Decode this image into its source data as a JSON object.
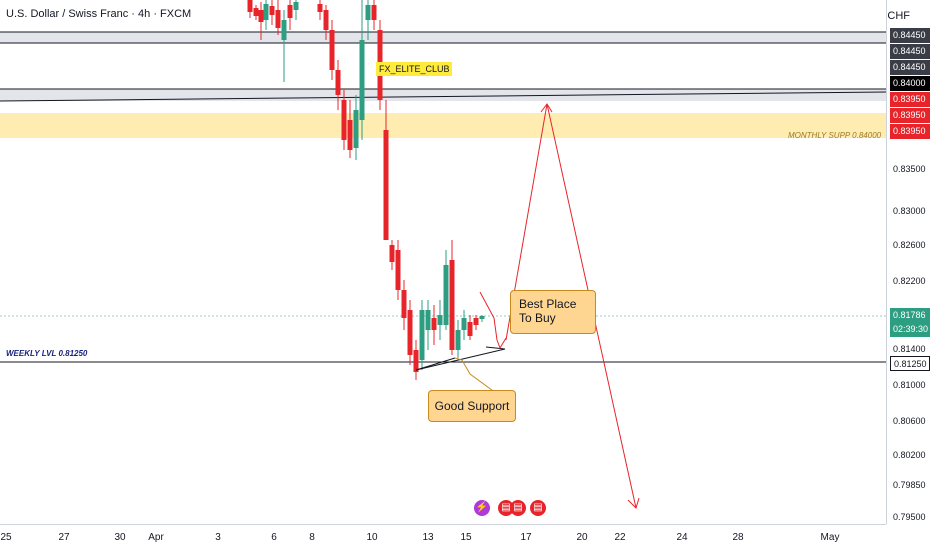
{
  "header": {
    "title": "U.S. Dollar / Swiss Franc · 4h · FXCM",
    "currency": "CHF"
  },
  "colors": {
    "up": "#2e9e83",
    "down": "#e8242b",
    "zone": "#ffd54f",
    "grey_zone": "#d1d4dc",
    "arrow": "#e8242b"
  },
  "price_axis": {
    "labels": [
      {
        "text": "0.84450",
        "style": "dark"
      },
      {
        "text": "0.84450",
        "style": "dark"
      },
      {
        "text": "0.84450",
        "style": "dark"
      },
      {
        "text": "0.84000",
        "style": "black"
      },
      {
        "text": "0.83950",
        "style": "red"
      },
      {
        "text": "0.83950",
        "style": "red"
      },
      {
        "text": "0.83950",
        "style": "red"
      },
      {
        "text": "0.83500",
        "style": "plain"
      },
      {
        "text": "0.83000",
        "style": "plain"
      },
      {
        "text": "0.82600",
        "style": "plain"
      },
      {
        "text": "0.82200",
        "style": "plain"
      },
      {
        "text": "0.81786",
        "style": "green"
      },
      {
        "text": "02:39:30",
        "style": "green2"
      },
      {
        "text": "0.81400",
        "style": "plain"
      },
      {
        "text": "0.81250",
        "style": "pill"
      },
      {
        "text": "0.81000",
        "style": "plain"
      },
      {
        "text": "0.80600",
        "style": "plain"
      },
      {
        "text": "0.80200",
        "style": "plain"
      },
      {
        "text": "0.79850",
        "style": "plain"
      },
      {
        "text": "0.79500",
        "style": "plain"
      }
    ]
  },
  "time_axis": {
    "labels": [
      "25",
      "27",
      "30",
      "Apr",
      "3",
      "6",
      "8",
      "10",
      "13",
      "15",
      "17",
      "20",
      "22",
      "24",
      "28",
      "May"
    ]
  },
  "annotations": {
    "tag_label": "FX_ELITE_CLUB",
    "monthly_supp": "MONTHLY SUPP 0.84000",
    "weekly_lvl": "WEEKLY LVL  0.81250",
    "best_place": "Best Place To Buy",
    "good_support": "Good Support"
  },
  "icons": [
    "lightning-event-icon",
    "us-flag-event-icon",
    "us-flag-event-icon",
    "us-flag-event-icon"
  ]
}
